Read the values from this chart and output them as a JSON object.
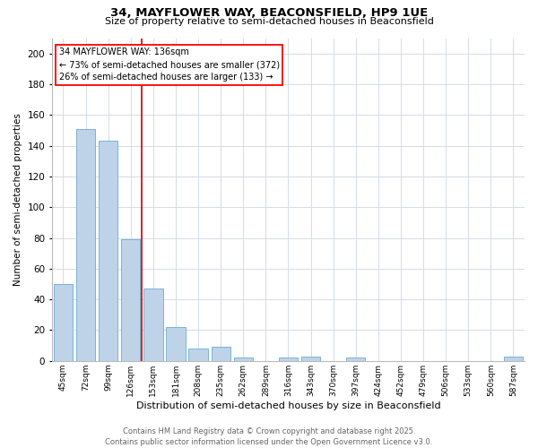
{
  "title1": "34, MAYFLOWER WAY, BEACONSFIELD, HP9 1UE",
  "title2": "Size of property relative to semi-detached houses in Beaconsfield",
  "xlabel": "Distribution of semi-detached houses by size in Beaconsfield",
  "ylabel": "Number of semi-detached properties",
  "categories": [
    "45sqm",
    "72sqm",
    "99sqm",
    "126sqm",
    "153sqm",
    "181sqm",
    "208sqm",
    "235sqm",
    "262sqm",
    "289sqm",
    "316sqm",
    "343sqm",
    "370sqm",
    "397sqm",
    "424sqm",
    "452sqm",
    "479sqm",
    "506sqm",
    "533sqm",
    "560sqm",
    "587sqm"
  ],
  "values": [
    50,
    151,
    143,
    79,
    47,
    22,
    8,
    9,
    2,
    0,
    2,
    3,
    0,
    2,
    0,
    0,
    0,
    0,
    0,
    0,
    3
  ],
  "bar_color": "#bfd3e8",
  "bar_edge_color": "#6aaad4",
  "grid_color": "#d4dce8",
  "vline_color": "#cc0000",
  "vline_x_index": 3,
  "annotation_title": "34 MAYFLOWER WAY: 136sqm",
  "annotation_line1": "← 73% of semi-detached houses are smaller (372)",
  "annotation_line2": "26% of semi-detached houses are larger (133) →",
  "footer1": "Contains HM Land Registry data © Crown copyright and database right 2025.",
  "footer2": "Contains public sector information licensed under the Open Government Licence v3.0.",
  "ylim": [
    0,
    210
  ],
  "yticks": [
    0,
    20,
    40,
    60,
    80,
    100,
    120,
    140,
    160,
    180,
    200
  ],
  "fig_width": 6.0,
  "fig_height": 5.0,
  "dpi": 100
}
